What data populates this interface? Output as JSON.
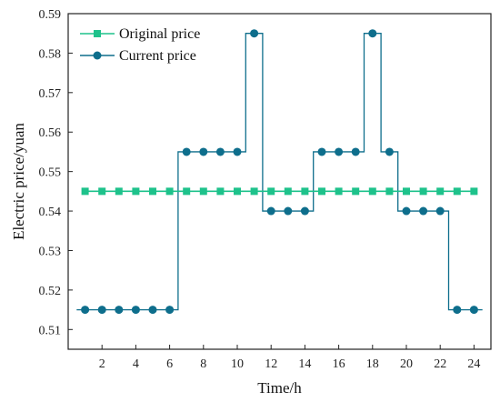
{
  "chart_data": {
    "type": "line",
    "xlabel": "Time/h",
    "ylabel": "Electric price/yuan",
    "xlim": [
      0,
      25
    ],
    "ylim": [
      0.505,
      0.59
    ],
    "xticks": [
      2,
      4,
      6,
      8,
      10,
      12,
      14,
      16,
      18,
      20,
      22,
      24
    ],
    "xtick_labels": [
      "2",
      "4",
      "6",
      "8",
      "10",
      "12",
      "14",
      "16",
      "18",
      "20",
      "22",
      "24"
    ],
    "yticks": [
      0.51,
      0.52,
      0.53,
      0.54,
      0.55,
      0.56,
      0.57,
      0.58,
      0.59
    ],
    "ytick_labels": [
      "0.51",
      "0.52",
      "0.53",
      "0.54",
      "0.55",
      "0.56",
      "0.57",
      "0.58",
      "0.59"
    ],
    "x": [
      1,
      2,
      3,
      4,
      5,
      6,
      7,
      8,
      9,
      10,
      11,
      12,
      13,
      14,
      15,
      16,
      17,
      18,
      19,
      20,
      21,
      22,
      23,
      24
    ],
    "grid": false,
    "legend_position": "top-left",
    "series": [
      {
        "name": "Original price",
        "color": "#1ec28b",
        "marker": "square",
        "style": "line",
        "values": [
          0.545,
          0.545,
          0.545,
          0.545,
          0.545,
          0.545,
          0.545,
          0.545,
          0.545,
          0.545,
          0.545,
          0.545,
          0.545,
          0.545,
          0.545,
          0.545,
          0.545,
          0.545,
          0.545,
          0.545,
          0.545,
          0.545,
          0.545,
          0.545
        ]
      },
      {
        "name": "Current price",
        "color": "#0e6e8c",
        "marker": "circle",
        "style": "step",
        "values": [
          0.515,
          0.515,
          0.515,
          0.515,
          0.515,
          0.515,
          0.555,
          0.555,
          0.555,
          0.555,
          0.585,
          0.54,
          0.54,
          0.54,
          0.555,
          0.555,
          0.555,
          0.585,
          0.555,
          0.54,
          0.54,
          0.54,
          0.515,
          0.515
        ]
      }
    ]
  }
}
